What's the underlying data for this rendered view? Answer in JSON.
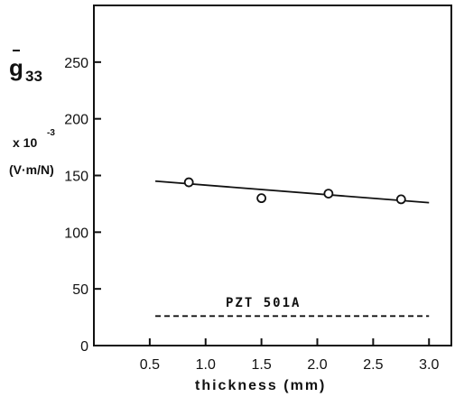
{
  "chart_data": {
    "type": "scatter",
    "xlabel": "thickness (mm)",
    "ylabel_symbol": "g",
    "ylabel_subscript": "33",
    "ylabel_multiplier": "x 10",
    "ylabel_exponent": "-3",
    "ylabel_unit": "(V·m/N)",
    "xlim": [
      0,
      3.2
    ],
    "ylim": [
      0,
      300
    ],
    "x_ticks": [
      0.5,
      1.0,
      1.5,
      2.0,
      2.5,
      3.0
    ],
    "x_tick_labels": [
      "0.5",
      "1.0",
      "1.5",
      "2.0",
      "2.5",
      "3.0"
    ],
    "y_ticks": [
      0,
      50,
      100,
      150,
      200,
      250
    ],
    "y_tick_labels": [
      "0",
      "50",
      "100",
      "150",
      "200",
      "250"
    ],
    "grid": false,
    "series": [
      {
        "marker": "open-circle",
        "x": [
          0.85,
          1.5,
          2.1,
          2.75
        ],
        "y": [
          144,
          130,
          134,
          129
        ]
      }
    ],
    "fit_line": {
      "x": [
        0.55,
        3.0
      ],
      "y": [
        145,
        126
      ]
    },
    "reference_line": {
      "label": "PZT 501A",
      "y": 26,
      "x": [
        0.55,
        3.0
      ],
      "style": "dashed"
    }
  }
}
